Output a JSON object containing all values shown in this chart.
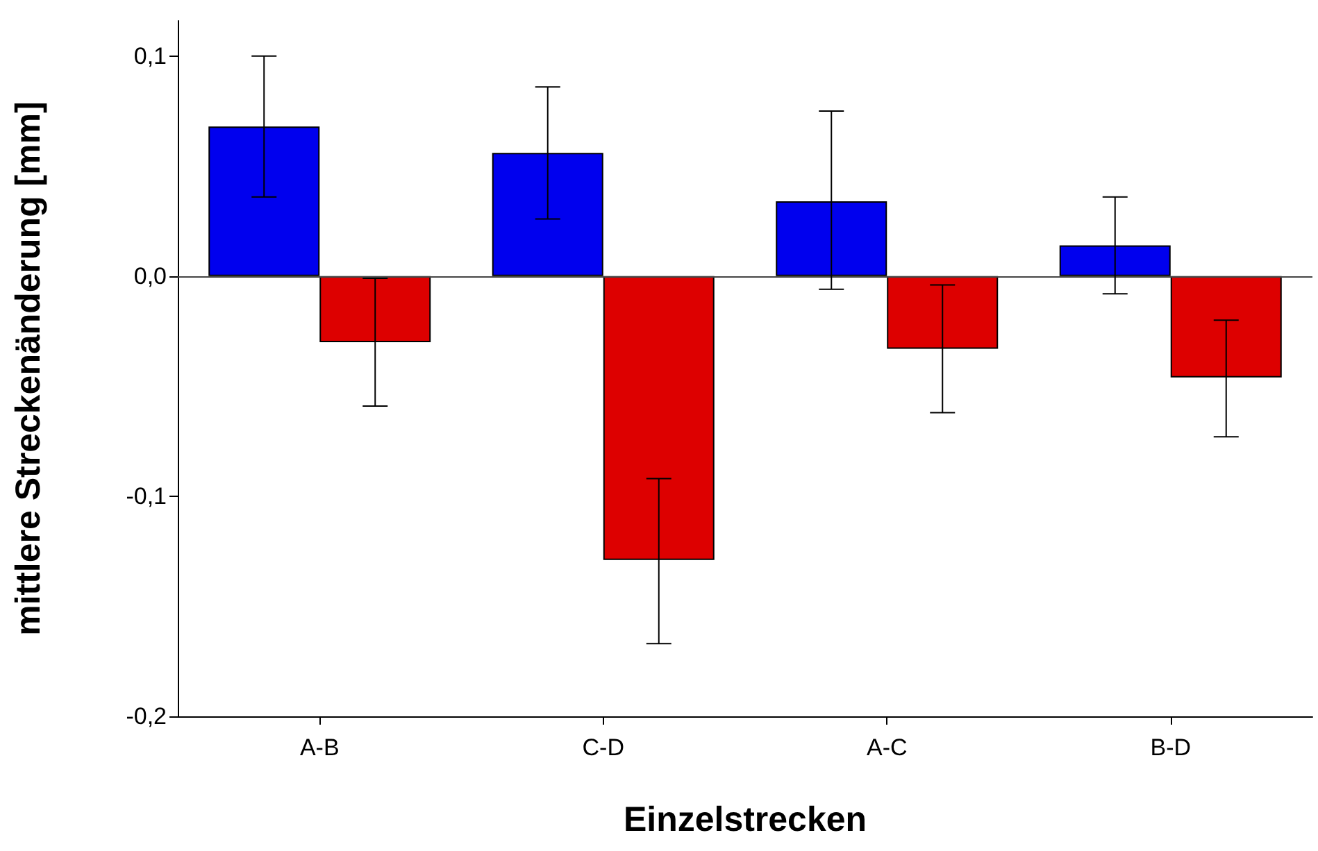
{
  "chart_data": {
    "type": "bar",
    "xlabel": "Einzelstrecken",
    "ylabel": "mittlere Streckenänderung [mm]",
    "categories": [
      "A-B",
      "C-D",
      "A-C",
      "B-D"
    ],
    "series": [
      {
        "color": "#0000ee",
        "values": [
          0.068,
          0.056,
          0.034,
          0.014
        ],
        "errors": [
          [
            0.036,
            0.1
          ],
          [
            0.026,
            0.086
          ],
          [
            -0.006,
            0.075
          ],
          [
            -0.008,
            0.036
          ]
        ]
      },
      {
        "color": "#dd0000",
        "values": [
          -0.03,
          -0.129,
          -0.033,
          -0.046
        ],
        "errors": [
          [
            -0.059,
            -0.001
          ],
          [
            -0.167,
            -0.092
          ],
          [
            -0.062,
            -0.004
          ],
          [
            -0.073,
            -0.02
          ]
        ]
      }
    ],
    "ylim": [
      -0.2,
      0.116
    ],
    "yticks": [
      {
        "value": -0.2,
        "label": "-0,2"
      },
      {
        "value": -0.1,
        "label": "-0,1"
      },
      {
        "value": 0,
        "label": "0,0"
      },
      {
        "value": 0.1,
        "label": "0,1"
      }
    ],
    "ref_lines": [
      {
        "axis": "y",
        "value": 0,
        "color": "#444444"
      }
    ],
    "grid": false
  }
}
